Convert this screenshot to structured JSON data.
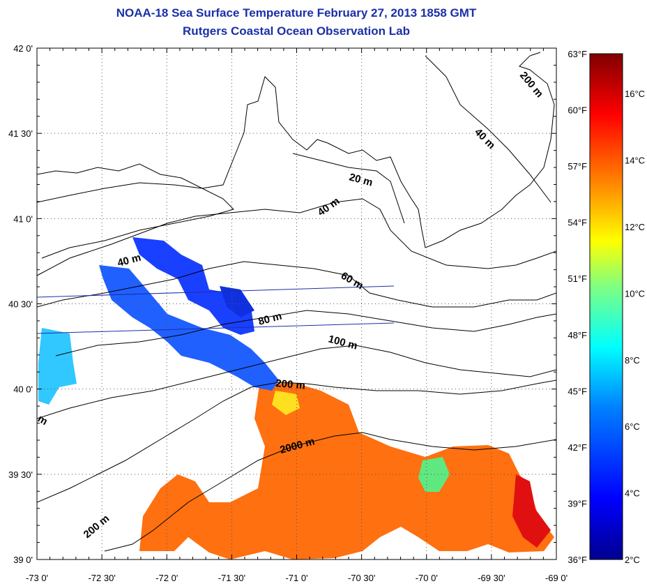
{
  "title": "NOAA-18 Sea Surface Temperature February 27, 2013 1858 GMT",
  "subtitle": "Rutgers Coastal Ocean Observation Lab",
  "lat_labels": [
    "42 0'",
    "41 30'",
    "41 0'",
    "40 30'",
    "40 0'",
    "39 30'",
    "39 0'"
  ],
  "lon_labels": [
    "-73 0'",
    "-72 30'",
    "-72 0'",
    "-71 30'",
    "-71 0'",
    "-70 30'",
    "-70 0'",
    "-69 30'",
    "-69 0'"
  ],
  "extent": {
    "lon_min": -73.0,
    "lon_max": -69.0,
    "lat_min": 39.0,
    "lat_max": 42.0
  },
  "contour_labels": [
    "200 m",
    "40 m",
    "20 m",
    "40 m",
    "40 m",
    "60 m",
    "80 m",
    "100 m",
    "200 m",
    "2000 m",
    "200 m",
    "m"
  ],
  "colorbar": {
    "fahrenheit": [
      "63°F",
      "60°F",
      "57°F",
      "54°F",
      "51°F",
      "48°F",
      "45°F",
      "42°F",
      "39°F",
      "36°F"
    ],
    "celsius": [
      "16°C",
      "14°C",
      "12°C",
      "10°C",
      "8°C",
      "6°C",
      "4°C",
      "2°C"
    ],
    "range_c": [
      2,
      17.2
    ]
  },
  "colors": {
    "title": "#1a2fa8",
    "land": "#ffffff",
    "coast": "#000000",
    "track": "#1a2fa8"
  }
}
